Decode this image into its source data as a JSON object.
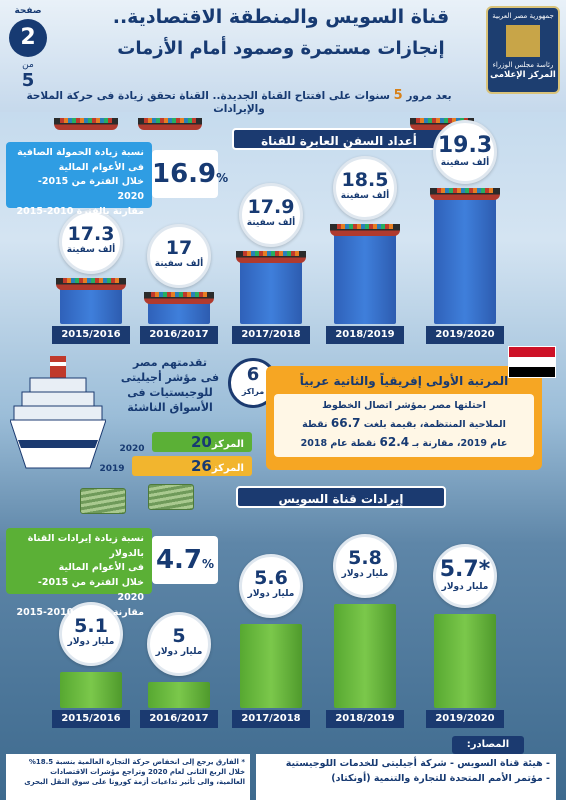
{
  "header": {
    "title_line1": "قناة السويس والمنطقة الاقتصادية..",
    "title_line2": "إنجازات مستمرة وصمود أمام الأزمات",
    "subtitle_prefix": "بعد مرور",
    "subtitle_number": "5",
    "subtitle_suffix": "سنوات على افتتاح القناة الجديدة.. القناة تحقق زيادة فى حركة الملاحة والإيرادات",
    "page_label": "صفحة",
    "page_number": "2",
    "page_of": "من",
    "page_total": "5",
    "logo_line1": "جمهورية مصر العربية",
    "logo_line2": "رئاسة مجلس الوزراء",
    "logo_line3": "المركز الإعلامى"
  },
  "ships_section": {
    "title": "أعداد السفن العابرة للقناة",
    "unit": "ألف سفينة",
    "stat": {
      "pct": "16.9",
      "pct_sign": "%",
      "line1": "نسبة زيادة الحمولة الصافية",
      "line2": "فى الأعوام المالية",
      "line3": "خلال الفترة من 2015-2020",
      "line4": "مقارنة بالفترة 2010-2015"
    }
  },
  "revenue_section": {
    "title": "إيرادات قناة السويس",
    "unit": "مليار دولار",
    "stat": {
      "pct": "4.7",
      "pct_sign": "%",
      "line1": "نسبة زيادة إيرادات القناة بالدولار",
      "line2": "فى الأعوام المالية",
      "line3": "خلال الفترة من 2015-2020",
      "line4": "مقارنة بالفترة 2010-2015"
    }
  },
  "logistics": {
    "line1": "تقدمتهم مصر",
    "line2": "فى مؤشر أجيليتى",
    "line3": "للوجيستيات فى",
    "line4": "الأسواق الناشئة",
    "rank_jump": "6",
    "rank_jump_label": "مراكز",
    "rank_label": "المركز",
    "year_2020": "2020",
    "rank_2020": "20",
    "year_2019": "2019",
    "rank_2019": "26"
  },
  "ranking": {
    "title": "المرتبة الأولى إفريقياً والثانية عربياً",
    "line1": "احتلتها مصر بمؤشر اتصال الخطوط",
    "line2_prefix": "الملاحية المنتظمة، بقيمة بلغت",
    "value_2019": "66.7",
    "line2_suffix": "نقطة",
    "line3_prefix": "عام 2019، مقارنة بـ",
    "value_2018": "62.4",
    "line3_suffix": "نقطة عام 2018"
  },
  "sources": {
    "head": "المصادر:",
    "line1": "- هيئة قناة السويس - شركة أجيليتى للخدمات اللوجيستية",
    "line2": "- مؤتمر الأمم المتحدة للتجارة والتنمية (أونكتاد)"
  },
  "footnote": {
    "line1": "* الفارق يرجع إلى انخفاض حركة التجارة العالمية بنسبة 18.5%",
    "line2": "خلال الربع الثانى لعام 2020 وتراجع مؤشرات الاقتصادات",
    "line3": "العالمية، والى تأثير تداعيات أزمة كورونا على سوق النقل البحرى"
  },
  "colors": {
    "navy": "#1b3a70",
    "blue": "#3f7fdb",
    "green": "#6fbd3f",
    "orange": "#f6a623"
  },
  "chart_data": [
    {
      "type": "bar",
      "title": "أعداد السفن العابرة للقناة",
      "categories": [
        "2015/2016",
        "2016/2017",
        "2017/2018",
        "2018/2019",
        "2019/2020"
      ],
      "values": [
        17.3,
        17,
        17.9,
        18.5,
        19.3
      ],
      "value_labels": [
        "17.3",
        "17",
        "17.9",
        "18.5",
        "19.3"
      ],
      "ylabel": "ألف سفينة"
    },
    {
      "type": "bar",
      "title": "إيرادات قناة السويس",
      "categories": [
        "2015/2016",
        "2016/2017",
        "2017/2018",
        "2018/2019",
        "2019/2020"
      ],
      "values": [
        5.1,
        5,
        5.6,
        5.8,
        5.7
      ],
      "value_labels": [
        "5.1",
        "5",
        "5.6",
        "5.8",
        "5.7*"
      ],
      "ylabel": "مليار دولار"
    }
  ]
}
